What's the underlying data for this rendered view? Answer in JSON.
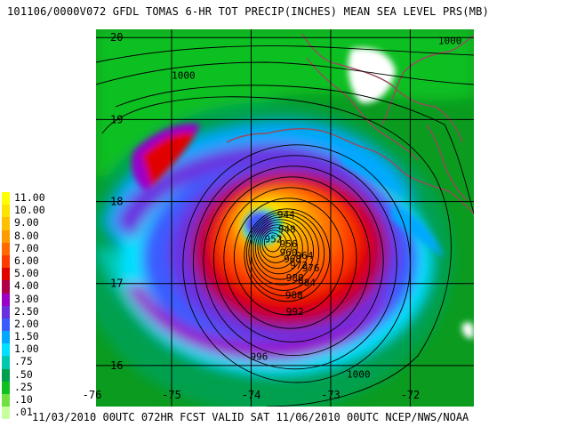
{
  "header": {
    "title": "101106/0000V072 GFDL TOMAS 6-HR TOT PRECIP(INCHES) MEAN SEA LEVEL PRS(MB)"
  },
  "footer": {
    "text": "11/03/2010 00UTC 072HR FCST VALID SAT 11/06/2010 00UTC  NCEP/NWS/NOAA"
  },
  "map": {
    "lat_labels": [
      "20",
      "19",
      "18",
      "17",
      "16"
    ],
    "lon_labels": [
      "-76",
      "-75",
      "-74",
      "-73",
      "-72"
    ],
    "lat_range": [
      15.5,
      20.1
    ],
    "lon_range": [
      -75.95,
      -71.2
    ],
    "storm_center": {
      "lon": -73.75,
      "lat": 17.52
    },
    "isobar_labels": [
      {
        "text": "1000",
        "lon": -74.85,
        "lat": 19.5
      },
      {
        "text": "1000",
        "lon": -71.5,
        "lat": 19.92
      },
      {
        "text": "1000",
        "lon": -72.65,
        "lat": 15.85
      },
      {
        "text": "996",
        "lon": -73.9,
        "lat": 16.07
      },
      {
        "text": "992",
        "lon": -73.45,
        "lat": 16.62
      },
      {
        "text": "988",
        "lon": -73.46,
        "lat": 16.82
      },
      {
        "text": "984",
        "lon": -73.3,
        "lat": 16.97
      },
      {
        "text": "980",
        "lon": -73.45,
        "lat": 17.03
      },
      {
        "text": "976",
        "lon": -73.25,
        "lat": 17.15
      },
      {
        "text": "972",
        "lon": -73.4,
        "lat": 17.18
      },
      {
        "text": "968",
        "lon": -73.48,
        "lat": 17.26
      },
      {
        "text": "964",
        "lon": -73.33,
        "lat": 17.3
      },
      {
        "text": "960",
        "lon": -73.53,
        "lat": 17.34
      },
      {
        "text": "956",
        "lon": -73.53,
        "lat": 17.44
      },
      {
        "text": "952",
        "lon": -73.72,
        "lat": 17.5
      },
      {
        "text": "948",
        "lon": -73.55,
        "lat": 17.62
      },
      {
        "text": "944",
        "lon": -73.56,
        "lat": 17.8
      }
    ],
    "colors": {
      "background": "#0a9b1f",
      "land_border": "#9a4a5e",
      "grid": "#000000"
    }
  },
  "legend": {
    "items": [
      {
        "label": "11.00",
        "color": "#ffff00"
      },
      {
        "label": "10.00",
        "color": "#ffe400"
      },
      {
        "label": "9.00",
        "color": "#ffc000"
      },
      {
        "label": "8.00",
        "color": "#ff9a00"
      },
      {
        "label": "7.00",
        "color": "#ff6a00"
      },
      {
        "label": "6.00",
        "color": "#ff3a00"
      },
      {
        "label": "5.00",
        "color": "#e00000"
      },
      {
        "label": "4.00",
        "color": "#b0004a"
      },
      {
        "label": "3.00",
        "color": "#9a00c8"
      },
      {
        "label": "2.50",
        "color": "#6a30e0"
      },
      {
        "label": "2.00",
        "color": "#3a5cff"
      },
      {
        "label": "1.50",
        "color": "#00a8ff"
      },
      {
        "label": "1.00",
        "color": "#00e0ff"
      },
      {
        "label": ".75",
        "color": "#00c8b0"
      },
      {
        "label": ".50",
        "color": "#00a050"
      },
      {
        "label": ".25",
        "color": "#10c020"
      },
      {
        "label": ".10",
        "color": "#70e040"
      },
      {
        "label": ".01",
        "color": "#c8ffa0"
      }
    ]
  }
}
